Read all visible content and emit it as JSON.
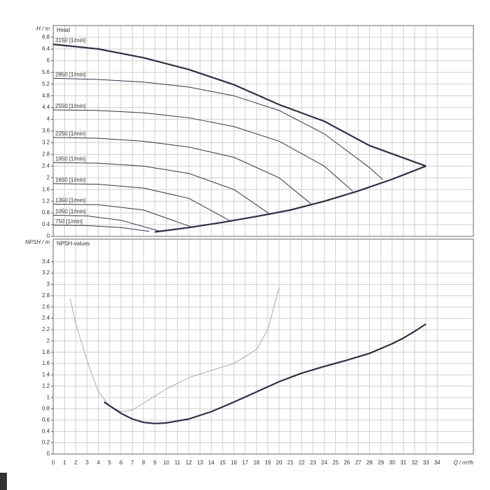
{
  "chart_data": [
    {
      "type": "line",
      "title": "Head",
      "y_label": "H / m",
      "xlim": [
        0,
        37.2
      ],
      "ylim": [
        0,
        7.2
      ],
      "xticks": [
        0,
        1,
        2,
        3,
        4,
        5,
        6,
        7,
        8,
        9,
        10,
        11,
        12,
        13,
        14,
        15,
        16,
        17,
        18,
        19,
        20,
        21,
        22,
        23,
        24,
        25,
        26,
        27,
        28,
        29,
        30,
        31,
        32,
        33,
        34
      ],
      "yticks": [
        0,
        0.4,
        0.8,
        1.2,
        1.6,
        2,
        2.4,
        2.8,
        3.2,
        3.6,
        4,
        4.4,
        4.8,
        5.2,
        5.6,
        6,
        6.4,
        6.8
      ],
      "grid": true,
      "series": [
        {
          "name": "3150 [1/min]",
          "color": "#2b2e45",
          "width": 2.2,
          "x": [
            0,
            4,
            8,
            12,
            16,
            20,
            24,
            28,
            33
          ],
          "values": [
            6.56,
            6.4,
            6.1,
            5.7,
            5.18,
            4.5,
            3.93,
            3.1,
            2.4
          ]
        },
        {
          "name": "2850 [1/min]",
          "color": "#30334a",
          "width": 1,
          "x": [
            0,
            4,
            8,
            12,
            16,
            20,
            24,
            28,
            29.2
          ],
          "values": [
            5.4,
            5.36,
            5.27,
            5.1,
            4.8,
            4.3,
            3.5,
            2.35,
            1.93
          ]
        },
        {
          "name": "2550 [1/min]",
          "color": "#30334a",
          "width": 1,
          "x": [
            0,
            4,
            8,
            12,
            16,
            20,
            24,
            26.5
          ],
          "values": [
            4.32,
            4.3,
            4.22,
            4.05,
            3.75,
            3.25,
            2.4,
            1.55
          ]
        },
        {
          "name": "2250 [1/min]",
          "color": "#30334a",
          "width": 1,
          "x": [
            0,
            4,
            8,
            12,
            16,
            20,
            22.8
          ],
          "values": [
            3.38,
            3.35,
            3.25,
            3.05,
            2.7,
            2.0,
            1.12
          ]
        },
        {
          "name": "1950 [1/min]",
          "color": "#30334a",
          "width": 1,
          "x": [
            0,
            4,
            8,
            12,
            16,
            19.1
          ],
          "values": [
            2.52,
            2.5,
            2.4,
            2.15,
            1.6,
            0.78
          ]
        },
        {
          "name": "1650 [1/min]",
          "color": "#30334a",
          "width": 1,
          "x": [
            0,
            4,
            8,
            12,
            15.8
          ],
          "values": [
            1.8,
            1.78,
            1.65,
            1.3,
            0.5
          ]
        },
        {
          "name": "1350 [1/min]",
          "color": "#30334a",
          "width": 1,
          "x": [
            0,
            4,
            8,
            12.4
          ],
          "values": [
            1.1,
            1.08,
            0.9,
            0.3
          ]
        },
        {
          "name": "1050 [1/min]",
          "color": "#30334a",
          "width": 1,
          "x": [
            0,
            3,
            6,
            9.4
          ],
          "values": [
            0.72,
            0.7,
            0.55,
            0.18
          ]
        },
        {
          "name": "750 [1/min]",
          "color": "#30334a",
          "width": 1,
          "x": [
            0,
            3,
            6,
            8.5
          ],
          "values": [
            0.38,
            0.37,
            0.3,
            0.17
          ]
        },
        {
          "color": "#2b2e45",
          "width": 2.2,
          "x": [
            9,
            12,
            15,
            18,
            21,
            24,
            27,
            30,
            33
          ],
          "values": [
            0.15,
            0.3,
            0.48,
            0.68,
            0.9,
            1.2,
            1.55,
            1.95,
            2.4
          ]
        }
      ]
    },
    {
      "type": "line",
      "title": "NPSH-values",
      "y_label": "NPSH / m",
      "x_label": "Q / m³/h",
      "xlim": [
        0,
        37.2
      ],
      "ylim": [
        0,
        3.8
      ],
      "xticks": [
        0,
        1,
        2,
        3,
        4,
        5,
        6,
        7,
        8,
        9,
        10,
        11,
        12,
        13,
        14,
        15,
        16,
        17,
        18,
        19,
        20,
        21,
        22,
        23,
        24,
        25,
        26,
        27,
        28,
        29,
        30,
        31,
        32,
        33,
        34
      ],
      "yticks": [
        0,
        0.2,
        0.4,
        0.6,
        0.8,
        1,
        1.2,
        1.4,
        1.6,
        1.8,
        2,
        2.2,
        2.4,
        2.6,
        2.8,
        3,
        3.2,
        3.4
      ],
      "grid": true,
      "series": [
        {
          "color": "#aaaaaa",
          "width": 1,
          "x": [
            1.5,
            2,
            3,
            4,
            5,
            6,
            7,
            8,
            10,
            12,
            14,
            16,
            18,
            19,
            20
          ],
          "values": [
            2.75,
            2.3,
            1.65,
            1.1,
            0.85,
            0.75,
            0.78,
            0.9,
            1.15,
            1.35,
            1.48,
            1.6,
            1.85,
            2.2,
            2.95
          ]
        },
        {
          "color": "#2b2e45",
          "width": 2.2,
          "x": [
            4.5,
            6,
            7,
            8,
            9,
            10,
            12,
            14,
            16,
            18,
            20,
            22,
            24,
            26,
            28,
            30,
            31,
            32,
            33
          ],
          "values": [
            0.92,
            0.72,
            0.62,
            0.56,
            0.54,
            0.55,
            0.62,
            0.75,
            0.92,
            1.1,
            1.28,
            1.43,
            1.55,
            1.66,
            1.78,
            1.95,
            2.05,
            2.17,
            2.3
          ]
        }
      ]
    }
  ]
}
